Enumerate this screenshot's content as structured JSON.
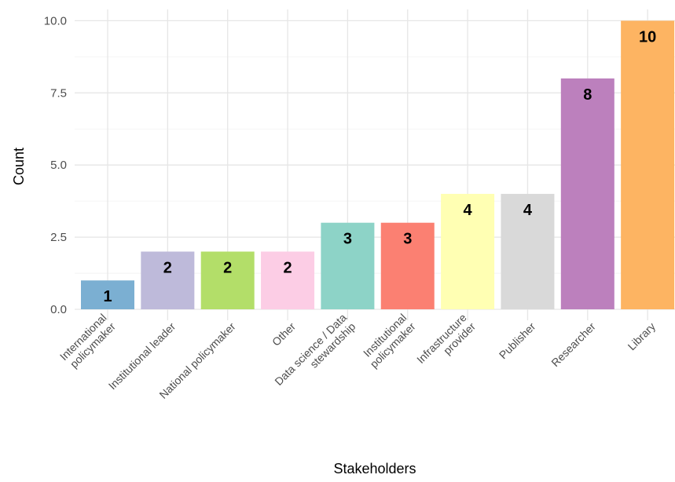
{
  "chart_data": {
    "type": "bar",
    "title": "",
    "xlabel": "Stakeholders",
    "ylabel": "Count",
    "ylim": [
      0,
      10
    ],
    "yticks": [
      "0.0",
      "2.5",
      "5.0",
      "7.5",
      "10.0"
    ],
    "grid": true,
    "legend": "none",
    "categories": [
      [
        "International",
        "policymaker"
      ],
      [
        "Institutional leader"
      ],
      [
        "National policymaker"
      ],
      [
        "Other"
      ],
      [
        "Data science / Data",
        "stewardship"
      ],
      [
        "Institutional",
        "policymaker"
      ],
      [
        "Infrastructure",
        "provider"
      ],
      [
        "Publisher"
      ],
      [
        "Researcher"
      ],
      [
        "Library"
      ]
    ],
    "values": [
      1,
      2,
      2,
      2,
      3,
      3,
      4,
      4,
      8,
      10
    ],
    "labels": [
      "1",
      "2",
      "2",
      "2",
      "3",
      "3",
      "4",
      "4",
      "8",
      "10"
    ],
    "colors": [
      "#7bafd2",
      "#bebada",
      "#b3de69",
      "#fccde5",
      "#8dd3c7",
      "#fb8072",
      "#ffffb3",
      "#d9d9d9",
      "#bc80bd",
      "#fdb462"
    ]
  }
}
